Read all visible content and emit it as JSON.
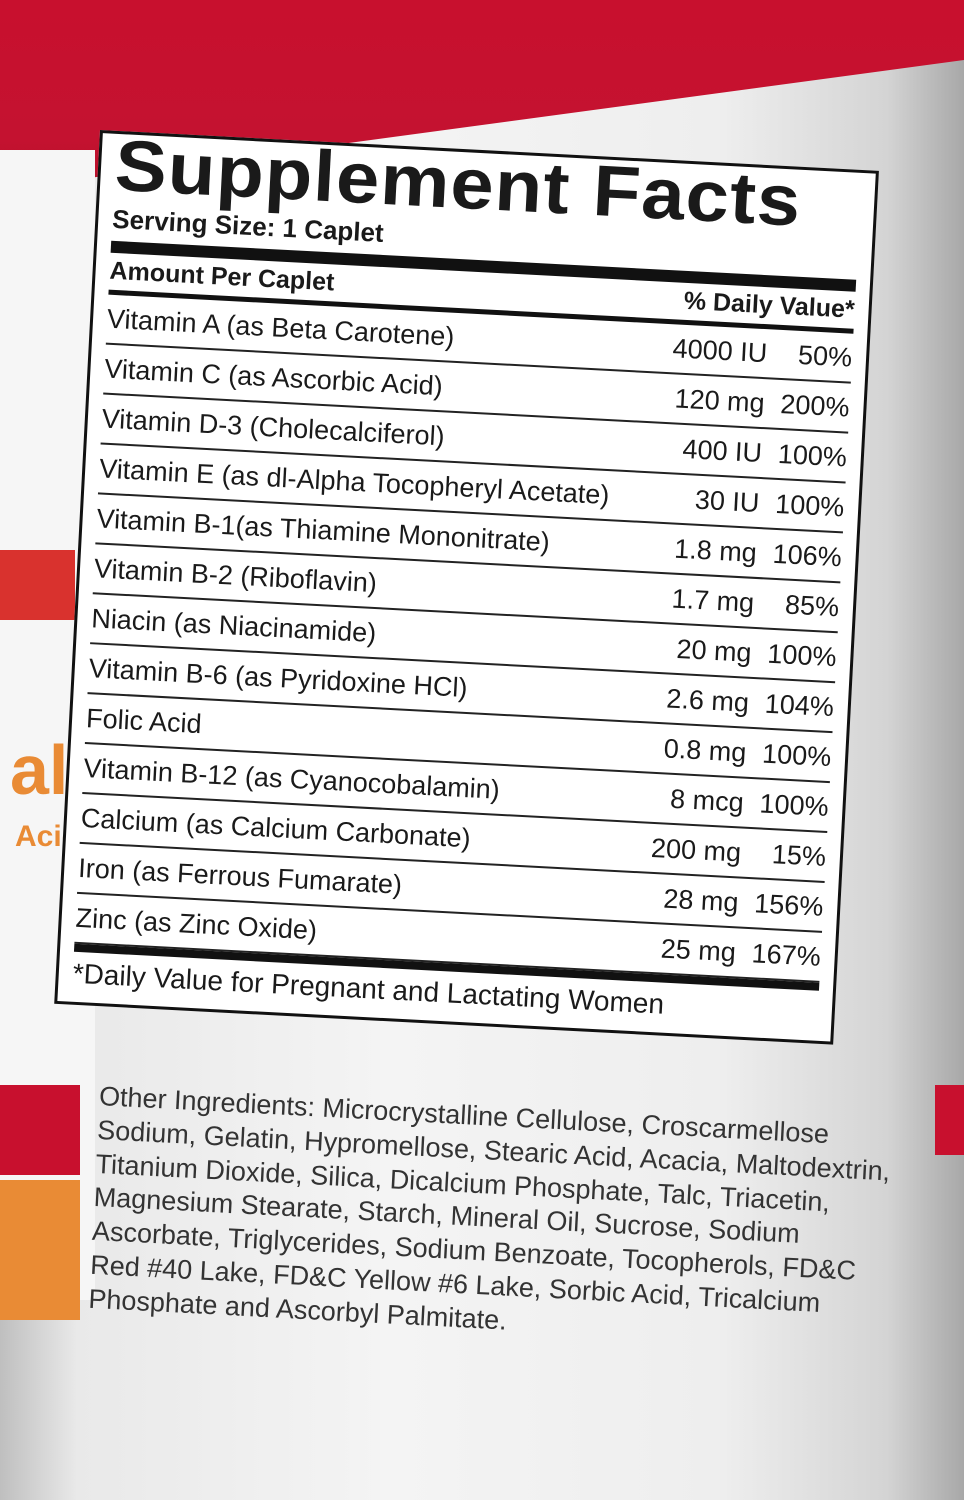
{
  "panel": {
    "title": "Supplement Facts",
    "serving_size": "Serving Size: 1 Caplet",
    "amount_header": "Amount Per Caplet",
    "dv_header": "% Daily Value*",
    "rows": [
      {
        "name": "Vitamin A (as Beta Carotene)",
        "amount": "4000 IU",
        "dv": "50%"
      },
      {
        "name": "Vitamin C (as Ascorbic Acid)",
        "amount": "120 mg",
        "dv": "200%"
      },
      {
        "name": "Vitamin D-3 (Cholecalciferol)",
        "amount": "400 IU",
        "dv": "100%"
      },
      {
        "name": "Vitamin E (as dl-Alpha Tocopheryl Acetate)",
        "amount": "30 IU",
        "dv": "100%"
      },
      {
        "name": "Vitamin B-1(as Thiamine Mononitrate)",
        "amount": "1.8 mg",
        "dv": "106%"
      },
      {
        "name": "Vitamin B-2 (Riboflavin)",
        "amount": "1.7 mg",
        "dv": "85%"
      },
      {
        "name": "Niacin (as Niacinamide)",
        "amount": "20 mg",
        "dv": "100%"
      },
      {
        "name": "Vitamin B-6 (as Pyridoxine HCl)",
        "amount": "2.6 mg",
        "dv": "104%"
      },
      {
        "name": "Folic Acid",
        "amount": "0.8 mg",
        "dv": "100%"
      },
      {
        "name": "Vitamin B-12 (as Cyanocobalamin)",
        "amount": "8 mcg",
        "dv": "100%"
      },
      {
        "name": "Calcium (as Calcium Carbonate)",
        "amount": "200 mg",
        "dv": "15%"
      },
      {
        "name": "Iron (as Ferrous Fumarate)",
        "amount": "28 mg",
        "dv": "156%"
      },
      {
        "name": "Zinc (as Zinc Oxide)",
        "amount": "25 mg",
        "dv": "167%"
      }
    ],
    "footnote": "*Daily Value for Pregnant and Lactating Women"
  },
  "other_ingredients": "Other Ingredients: Microcrystalline Cellulose, Croscarmellose Sodium, Gelatin, Hypromellose, Stearic Acid, Acacia, Maltodextrin, Titanium Dioxide, Silica, Dicalcium Phosphate, Talc, Triacetin, Magnesium Stearate, Starch, Mineral Oil, Sucrose, Sodium Ascorbate, Triglycerides, Sodium Benzoate, Tocopherols, FD&C Red #40 Lake, FD&C Yellow #6 Lake, Sorbic Acid, Tricalcium Phosphate and Ascorbyl Palmitate.",
  "side_label": {
    "big": "al",
    "acid": "Acid"
  },
  "colors": {
    "brand_red": "#c8102e",
    "accent_orange": "#e98b35"
  }
}
